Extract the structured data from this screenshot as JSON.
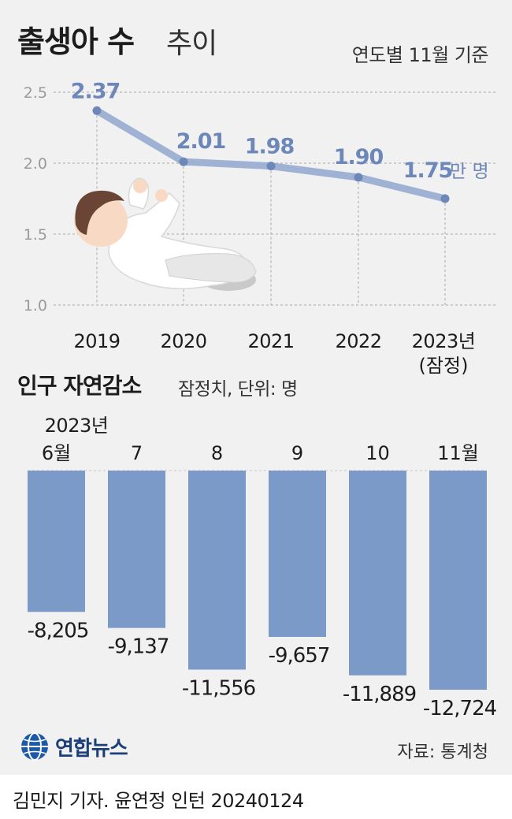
{
  "title": {
    "main": "출생아 수",
    "sub": "추이"
  },
  "top_note": "연도별 11월 기준",
  "line_unit": "만 명",
  "bar_title": "인구 자연감소",
  "bar_note": "잠정치, 단위: 명",
  "logo_text": "연합뉴스",
  "source": "자료: 통계청",
  "credit": "김민지 기자. 윤연정 인턴  20240124",
  "colors": {
    "line": "#9fb2d3",
    "point": "#6c87b8",
    "label": "#6c87b8",
    "bar": "#7b9ac8",
    "grid": "#a8a8a8"
  },
  "chart_data": [
    {
      "type": "line",
      "title": "출생아 수 추이",
      "x": [
        "2019",
        "2020",
        "2021",
        "2022",
        "2023년"
      ],
      "x_sublabels": [
        "",
        "",
        "",
        "",
        "(잠정)"
      ],
      "values": [
        2.37,
        2.01,
        1.98,
        1.9,
        1.75
      ],
      "value_labels": [
        "2.37",
        "2.01",
        "1.98",
        "1.90",
        "1.75"
      ],
      "yticks": [
        "2.5",
        "2.0",
        "1.5",
        "1.0"
      ],
      "ylim": [
        1.0,
        2.5
      ],
      "unit": "만 명",
      "grid": "horizontal dashed"
    },
    {
      "type": "bar",
      "title": "인구 자연감소",
      "category_prefix": [
        "2023년",
        "",
        "",
        "",
        "",
        ""
      ],
      "categories": [
        "6월",
        "7",
        "8",
        "9",
        "10",
        "11월"
      ],
      "values": [
        -8205,
        -9137,
        -11556,
        -9657,
        -11889,
        -12724
      ],
      "value_labels": [
        "-8,205",
        "-9,137",
        "-11,556",
        "-9,657",
        "-11,889",
        "-12,724"
      ],
      "unit": "명"
    }
  ]
}
